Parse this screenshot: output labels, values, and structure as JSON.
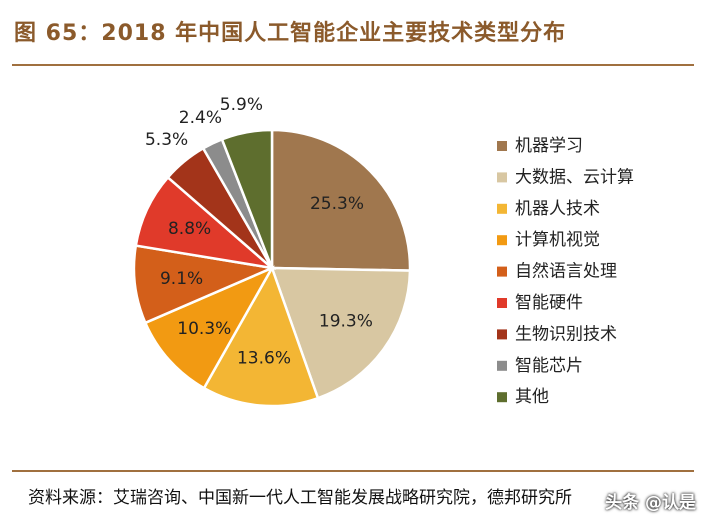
{
  "figure": {
    "title": "图 65：2018 年中国人工智能企业主要技术类型分布",
    "source": "资料来源：艾瑞咨询、中国新一代人工智能发展战略研究院，德邦研究所",
    "watermark": "头条 @认是"
  },
  "chart_data": {
    "type": "pie",
    "title": "",
    "legend_position": "right",
    "slices": [
      {
        "label": "机器学习",
        "value": 25.3,
        "value_label": "25.3%",
        "color": "#a0774e"
      },
      {
        "label": "大数据、云计算",
        "value": 19.3,
        "value_label": "19.3%",
        "color": "#d8c7a2"
      },
      {
        "label": "机器人技术",
        "value": 13.6,
        "value_label": "13.6%",
        "color": "#f3b634"
      },
      {
        "label": "计算机视觉",
        "value": 10.3,
        "value_label": "10.3%",
        "color": "#f29a12"
      },
      {
        "label": "自然语言处理",
        "value": 9.1,
        "value_label": "9.1%",
        "color": "#d35f1a"
      },
      {
        "label": "智能硬件",
        "value": 8.8,
        "value_label": "8.8%",
        "color": "#e03a2a"
      },
      {
        "label": "生物识别技术",
        "value": 5.3,
        "value_label": "5.3%",
        "color": "#a3341a"
      },
      {
        "label": "智能芯片",
        "value": 2.4,
        "value_label": "2.4%",
        "color": "#8c8c8c"
      },
      {
        "label": "其他",
        "value": 5.9,
        "value_label": "5.9%",
        "color": "#5e6e2e"
      }
    ]
  }
}
